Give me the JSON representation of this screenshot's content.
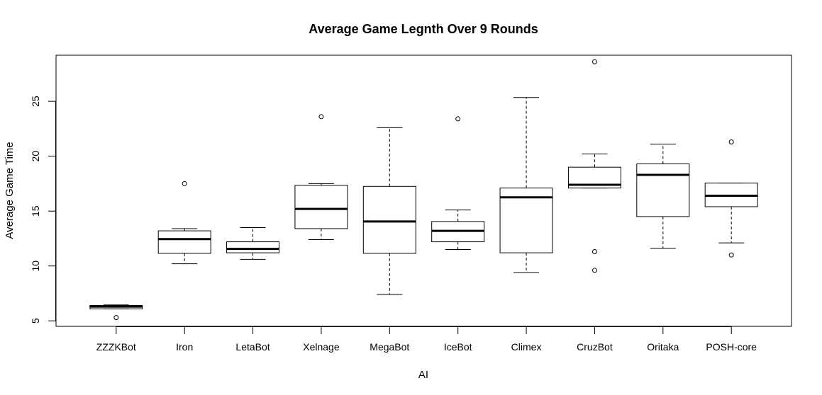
{
  "chart_data": {
    "type": "boxplot",
    "title": "Average Game Legnth Over 9 Rounds",
    "xlabel": "AI",
    "ylabel": "Average Game Time",
    "categories": [
      "ZZZKBot",
      "Iron",
      "LetaBot",
      "Xelnage",
      "MegaBot",
      "IceBot",
      "Climex",
      "CruzBot",
      "Oritaka",
      "POSH-core"
    ],
    "ylim": [
      4.5,
      29.2
    ],
    "yticks": [
      5,
      10,
      15,
      20,
      25
    ],
    "grid": false,
    "legend": "none",
    "boxes": [
      {
        "category": "ZZZKBot",
        "whisker_low": 6.1,
        "q1": 6.1,
        "median": 6.3,
        "q3": 6.4,
        "whisker_high": 6.45,
        "outliers": [
          5.3
        ]
      },
      {
        "category": "Iron",
        "whisker_low": 10.2,
        "q1": 11.15,
        "median": 12.45,
        "q3": 13.2,
        "whisker_high": 13.4,
        "outliers": [
          17.5
        ]
      },
      {
        "category": "LetaBot",
        "whisker_low": 10.6,
        "q1": 11.2,
        "median": 11.55,
        "q3": 12.2,
        "whisker_high": 13.5,
        "outliers": []
      },
      {
        "category": "Xelnage",
        "whisker_low": 12.4,
        "q1": 13.4,
        "median": 15.2,
        "q3": 17.35,
        "whisker_high": 17.5,
        "outliers": [
          23.6
        ]
      },
      {
        "category": "MegaBot",
        "whisker_low": 7.4,
        "q1": 11.15,
        "median": 14.05,
        "q3": 17.25,
        "whisker_high": 22.6,
        "outliers": []
      },
      {
        "category": "IceBot",
        "whisker_low": 11.5,
        "q1": 12.2,
        "median": 13.2,
        "q3": 14.05,
        "whisker_high": 15.1,
        "outliers": [
          23.4
        ]
      },
      {
        "category": "Climex",
        "whisker_low": 9.4,
        "q1": 11.2,
        "median": 16.25,
        "q3": 17.1,
        "whisker_high": 25.35,
        "outliers": []
      },
      {
        "category": "CruzBot",
        "whisker_low": 17.1,
        "q1": 17.1,
        "median": 17.4,
        "q3": 19.0,
        "whisker_high": 20.2,
        "outliers": [
          28.6,
          11.3,
          9.6
        ]
      },
      {
        "category": "Oritaka",
        "whisker_low": 11.6,
        "q1": 14.5,
        "median": 18.3,
        "q3": 19.3,
        "whisker_high": 21.1,
        "outliers": []
      },
      {
        "category": "POSH-core",
        "whisker_low": 12.1,
        "q1": 15.4,
        "median": 16.4,
        "q3": 17.55,
        "whisker_high": 17.55,
        "outliers": [
          21.3,
          11.0
        ]
      }
    ]
  }
}
